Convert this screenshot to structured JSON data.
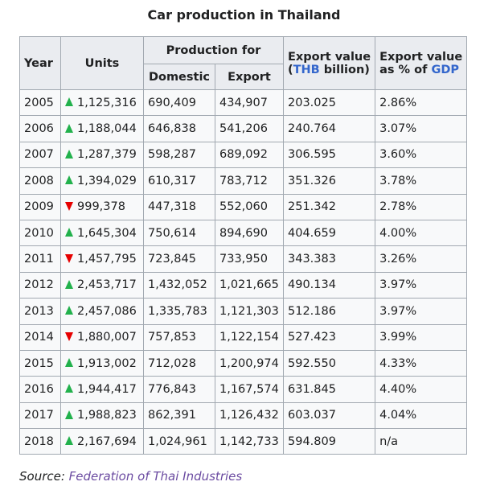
{
  "caption": "Car production in Thailand",
  "headers": {
    "year": "Year",
    "units": "Units",
    "production_for": "Production for",
    "domestic": "Domestic",
    "export": "Export",
    "export_value_prefix": "Export value",
    "export_value_open": "(",
    "export_value_link": "THB",
    "export_value_suffix": " billion)",
    "pct_gdp_prefix": "Export value",
    "pct_gdp_mid": "as % of ",
    "pct_gdp_link": "GDP"
  },
  "trend_icons": {
    "up": "green-up-triangle",
    "down": "red-down-triangle"
  },
  "colors": {
    "up": "#22b14c",
    "down": "#e60000",
    "link": "#3366cc",
    "source_link": "#6b4ba1"
  },
  "rows": [
    {
      "year": "2005",
      "trend": "up",
      "units": "1,125,316",
      "domestic": "690,409",
      "export": "434,907",
      "value": "203.025",
      "gdp": "2.86%"
    },
    {
      "year": "2006",
      "trend": "up",
      "units": "1,188,044",
      "domestic": "646,838",
      "export": "541,206",
      "value": "240.764",
      "gdp": "3.07%"
    },
    {
      "year": "2007",
      "trend": "up",
      "units": "1,287,379",
      "domestic": "598,287",
      "export": "689,092",
      "value": "306.595",
      "gdp": "3.60%"
    },
    {
      "year": "2008",
      "trend": "up",
      "units": "1,394,029",
      "domestic": "610,317",
      "export": "783,712",
      "value": "351.326",
      "gdp": "3.78%"
    },
    {
      "year": "2009",
      "trend": "down",
      "units": "999,378",
      "domestic": "447,318",
      "export": "552,060",
      "value": "251.342",
      "gdp": "2.78%"
    },
    {
      "year": "2010",
      "trend": "up",
      "units": "1,645,304",
      "domestic": "750,614",
      "export": "894,690",
      "value": "404.659",
      "gdp": "4.00%"
    },
    {
      "year": "2011",
      "trend": "down",
      "units": "1,457,795",
      "domestic": "723,845",
      "export": "733,950",
      "value": "343.383",
      "gdp": "3.26%"
    },
    {
      "year": "2012",
      "trend": "up",
      "units": "2,453,717",
      "domestic": "1,432,052",
      "export": "1,021,665",
      "value": "490.134",
      "gdp": "3.97%"
    },
    {
      "year": "2013",
      "trend": "up",
      "units": "2,457,086",
      "domestic": "1,335,783",
      "export": "1,121,303",
      "value": "512.186",
      "gdp": "3.97%"
    },
    {
      "year": "2014",
      "trend": "down",
      "units": "1,880,007",
      "domestic": "757,853",
      "export": "1,122,154",
      "value": "527.423",
      "gdp": "3.99%"
    },
    {
      "year": "2015",
      "trend": "up",
      "units": "1,913,002",
      "domestic": "712,028",
      "export": "1,200,974",
      "value": "592.550",
      "gdp": "4.33%"
    },
    {
      "year": "2016",
      "trend": "up",
      "units": "1,944,417",
      "domestic": "776,843",
      "export": "1,167,574",
      "value": "631.845",
      "gdp": "4.40%"
    },
    {
      "year": "2017",
      "trend": "up",
      "units": "1,988,823",
      "domestic": "862,391",
      "export": "1,126,432",
      "value": "603.037",
      "gdp": "4.04%"
    },
    {
      "year": "2018",
      "trend": "up",
      "units": "2,167,694",
      "domestic": "1,024,961",
      "export": "1,142,733",
      "value": "594.809",
      "gdp": "n/a"
    }
  ],
  "source": {
    "label": "Source: ",
    "link": "Federation of Thai Industries"
  }
}
